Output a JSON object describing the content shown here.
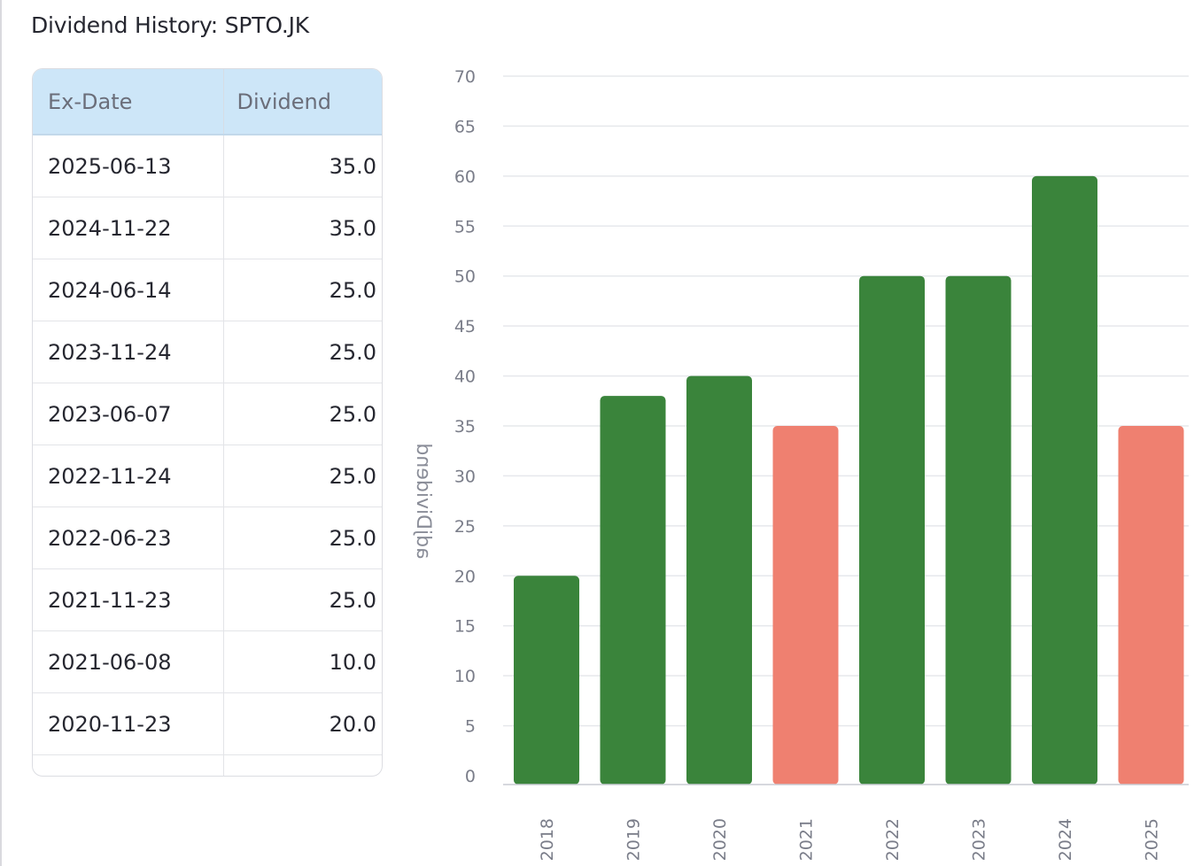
{
  "title": "Dividend History: SPTO.JK",
  "table": {
    "columns": [
      "Ex-Date",
      "Dividend"
    ],
    "rows": [
      {
        "date": "2025-06-13",
        "dividend": "35.0"
      },
      {
        "date": "2024-11-22",
        "dividend": "35.0"
      },
      {
        "date": "2024-06-14",
        "dividend": "25.0"
      },
      {
        "date": "2023-11-24",
        "dividend": "25.0"
      },
      {
        "date": "2023-06-07",
        "dividend": "25.0"
      },
      {
        "date": "2022-11-24",
        "dividend": "25.0"
      },
      {
        "date": "2022-06-23",
        "dividend": "25.0"
      },
      {
        "date": "2021-11-23",
        "dividend": "25.0"
      },
      {
        "date": "2021-06-08",
        "dividend": "10.0"
      },
      {
        "date": "2020-11-23",
        "dividend": "20.0"
      }
    ]
  },
  "chart_data": {
    "type": "bar",
    "categories": [
      "2018",
      "2019",
      "2020",
      "2021",
      "2022",
      "2023",
      "2024",
      "2025"
    ],
    "values": [
      20,
      38,
      40,
      35,
      50,
      50,
      60,
      35
    ],
    "bar_colors": [
      "#3a843b",
      "#3a843b",
      "#3a843b",
      "#ef8070",
      "#3a843b",
      "#3a843b",
      "#3a843b",
      "#ef8070"
    ],
    "ylabel": "adjDividend",
    "ylabel_mirrored": true,
    "ylim": [
      0,
      70
    ],
    "yticks": [
      0,
      5,
      10,
      15,
      20,
      25,
      30,
      35,
      40,
      45,
      50,
      55,
      60,
      65,
      70
    ],
    "grid": true,
    "xtick_rotation": -90,
    "legend": "none"
  },
  "colors": {
    "increase": "#3a843b",
    "decrease": "#ef8070",
    "header_bg": "#cde6f8",
    "grid": "#e6e8ec",
    "tick_text": "#7a7d89"
  }
}
